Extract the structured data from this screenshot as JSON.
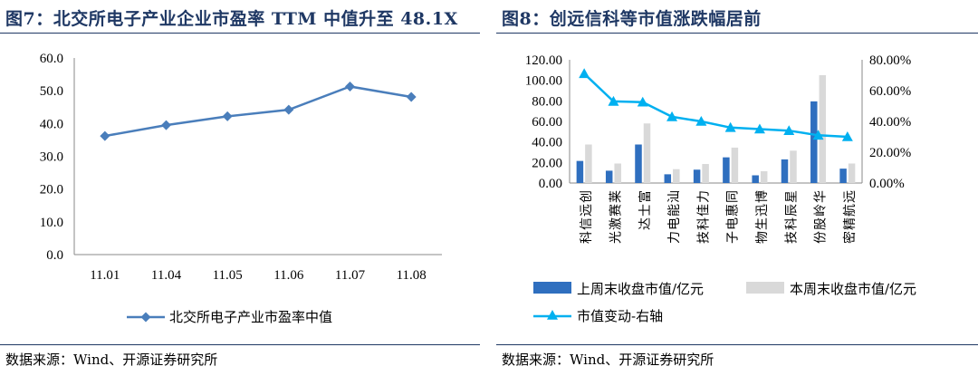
{
  "left_chart": {
    "title": "图7：北交所电子产业企业市盈率 TTM 中值升至 48.1X",
    "source": "数据来源：Wind、开源证券研究所",
    "chart_data": {
      "type": "line",
      "categories": [
        "11.01",
        "11.04",
        "11.05",
        "11.06",
        "11.07",
        "11.08"
      ],
      "series": [
        {
          "name": "北交所电子产业市盈率中值",
          "values": [
            36.2,
            39.5,
            42.2,
            44.2,
            51.3,
            48.1
          ],
          "color": "#4a7ebb"
        }
      ],
      "ylim": [
        0,
        60
      ],
      "yticks": [
        "0.0",
        "10.0",
        "20.0",
        "30.0",
        "40.0",
        "50.0",
        "60.0"
      ],
      "grid": false,
      "legend_position": "bottom"
    }
  },
  "right_chart": {
    "title": "图8：创远信科等市值涨跌幅居前",
    "source": "数据来源：Wind、开源证券研究所",
    "chart_data": {
      "type": "bar",
      "categories": [
        "创远信科",
        "莱赛激光",
        "富士达",
        "汕能电力",
        "力佳科技",
        "同惠电子",
        "博迅生物",
        "星辰科技",
        "华岭股份",
        "远航精密"
      ],
      "series": [
        {
          "name": "上周末收盘市值/亿元",
          "type": "bar",
          "axis": "left",
          "color": "#2f6fbf",
          "values": [
            21.5,
            12,
            37.5,
            8.5,
            13,
            25,
            7.5,
            23,
            79.5,
            14
          ]
        },
        {
          "name": "本周末收盘市值/亿元",
          "type": "bar",
          "axis": "left",
          "color": "#d9d9d9",
          "values": [
            37.5,
            19,
            58,
            13.5,
            18.5,
            34.5,
            11.5,
            31.5,
            105,
            19
          ]
        },
        {
          "name": "市值变动-右轴",
          "type": "line",
          "axis": "right",
          "color": "#00b0f0",
          "values": [
            71,
            53,
            52.5,
            43,
            40,
            36,
            35,
            34,
            31,
            30
          ]
        }
      ],
      "ylim_left": [
        0,
        120
      ],
      "yticks_left": [
        "0.00",
        "20.00",
        "40.00",
        "60.00",
        "80.00",
        "100.00",
        "120.00"
      ],
      "ylim_right": [
        0,
        80
      ],
      "yticks_right": [
        "0.00%",
        "20.00%",
        "40.00%",
        "60.00%",
        "80.00%"
      ],
      "grid": false,
      "legend_position": "bottom"
    }
  }
}
